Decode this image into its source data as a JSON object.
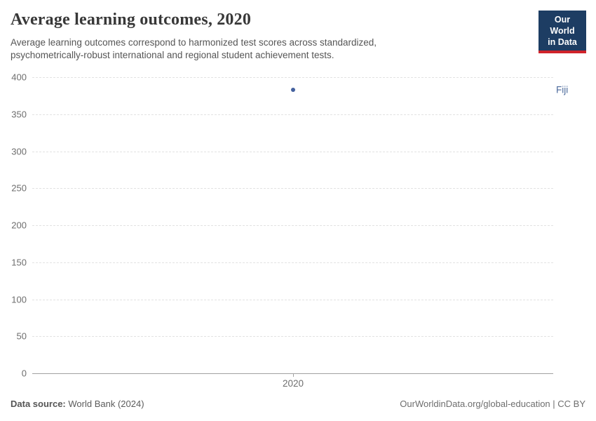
{
  "header": {
    "title": "Average learning outcomes, 2020",
    "subtitle": "Average learning outcomes correspond to harmonized test scores across standardized, psychometrically-robust international and regional student achievement tests.",
    "logo": {
      "line1": "Our World",
      "line2": "in Data"
    }
  },
  "chart_data": {
    "type": "scatter",
    "title": "Average learning outcomes, 2020",
    "x": [
      2020
    ],
    "xtick_labels": [
      "2020"
    ],
    "series": [
      {
        "name": "Fiji",
        "values": [
          383
        ],
        "color": "#44619e"
      }
    ],
    "xlabel": "",
    "ylabel": "",
    "ylim": [
      0,
      400
    ],
    "yticks": [
      0,
      50,
      100,
      150,
      200,
      250,
      300,
      350,
      400
    ],
    "grid": "horizontal-dashed",
    "legend_position": "right-entity-label",
    "entity_label_color": "#4c6a9c"
  },
  "footer": {
    "source_label": "Data source:",
    "source_value": "World Bank (2024)",
    "credit": "OurWorldinData.org/global-education | CC BY"
  },
  "colors": {
    "logo_background": "#1d3d63",
    "logo_accent": "#d0232b",
    "point": "#44619e",
    "gridline": "#e2e2e2",
    "axis": "#a1a1a1"
  }
}
